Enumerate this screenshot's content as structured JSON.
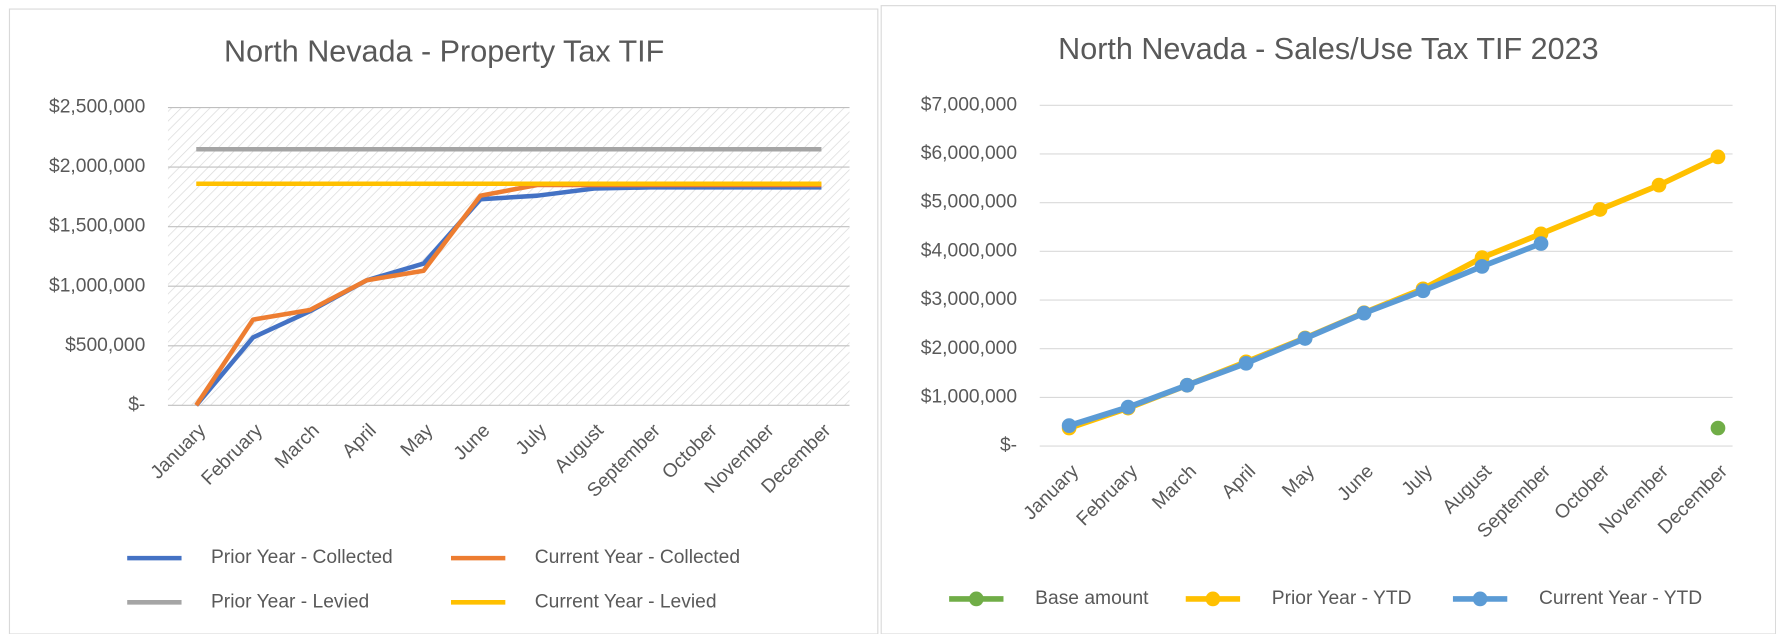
{
  "chart_data": [
    {
      "type": "line",
      "title": "North Nevada - Property Tax TIF",
      "categories": [
        "January",
        "February",
        "March",
        "April",
        "May",
        "June",
        "July",
        "August",
        "September",
        "October",
        "November",
        "December"
      ],
      "series": [
        {
          "name": "Prior Year - Collected",
          "color": "#4472c4",
          "values": [
            0,
            570000,
            790000,
            1050000,
            1190000,
            1730000,
            1760000,
            1820000,
            1830000,
            1830000,
            1830000,
            1830000
          ]
        },
        {
          "name": "Current Year - Collected",
          "color": "#ed7d31",
          "values": [
            0,
            720000,
            800000,
            1050000,
            1130000,
            1760000,
            1850000,
            1850000,
            1850000,
            1850000,
            1850000,
            1850000
          ]
        },
        {
          "name": "Prior Year - Levied",
          "color": "#a5a5a5",
          "values": [
            2150000,
            2150000,
            2150000,
            2150000,
            2150000,
            2150000,
            2150000,
            2150000,
            2150000,
            2150000,
            2150000,
            2150000
          ]
        },
        {
          "name": "Current Year - Levied",
          "color": "#ffc000",
          "values": [
            1860000,
            1860000,
            1860000,
            1860000,
            1860000,
            1860000,
            1860000,
            1860000,
            1860000,
            1860000,
            1860000,
            1860000
          ]
        }
      ],
      "ylim": [
        0,
        2500000
      ],
      "yticks": [
        {
          "value": 0,
          "label": "$-"
        },
        {
          "value": 500000,
          "label": "$500,000"
        },
        {
          "value": 1000000,
          "label": "$1,000,000"
        },
        {
          "value": 1500000,
          "label": "$1,500,000"
        },
        {
          "value": 2000000,
          "label": "$2,000,000"
        },
        {
          "value": 2500000,
          "label": "$2,500,000"
        }
      ],
      "grid": true,
      "markers": false,
      "legend": "bottom"
    },
    {
      "type": "line",
      "title": "North Nevada - Sales/Use Tax TIF 2023",
      "categories": [
        "January",
        "February",
        "March",
        "April",
        "May",
        "June",
        "July",
        "August",
        "September",
        "October",
        "November",
        "December"
      ],
      "series": [
        {
          "name": "Base amount",
          "color": "#70ad47",
          "values": [
            null,
            null,
            null,
            null,
            null,
            null,
            null,
            null,
            null,
            null,
            null,
            370000
          ]
        },
        {
          "name": "Prior Year - YTD",
          "color": "#ffc000",
          "values": [
            370000,
            780000,
            1250000,
            1730000,
            2220000,
            2740000,
            3230000,
            3870000,
            4360000,
            4860000,
            5360000,
            5940000
          ]
        },
        {
          "name": "Current Year - YTD",
          "color": "#5b9bd5",
          "values": [
            420000,
            800000,
            1250000,
            1700000,
            2210000,
            2730000,
            3190000,
            3690000,
            4160000,
            null,
            null,
            null
          ]
        }
      ],
      "ylim": [
        0,
        7000000
      ],
      "yticks": [
        {
          "value": 0,
          "label": "$-"
        },
        {
          "value": 1000000,
          "label": "$1,000,000"
        },
        {
          "value": 2000000,
          "label": "$2,000,000"
        },
        {
          "value": 3000000,
          "label": "$3,000,000"
        },
        {
          "value": 4000000,
          "label": "$4,000,000"
        },
        {
          "value": 5000000,
          "label": "$5,000,000"
        },
        {
          "value": 6000000,
          "label": "$6,000,000"
        },
        {
          "value": 7000000,
          "label": "$7,000,000"
        }
      ],
      "grid": true,
      "markers": true,
      "legend": "bottom"
    }
  ]
}
